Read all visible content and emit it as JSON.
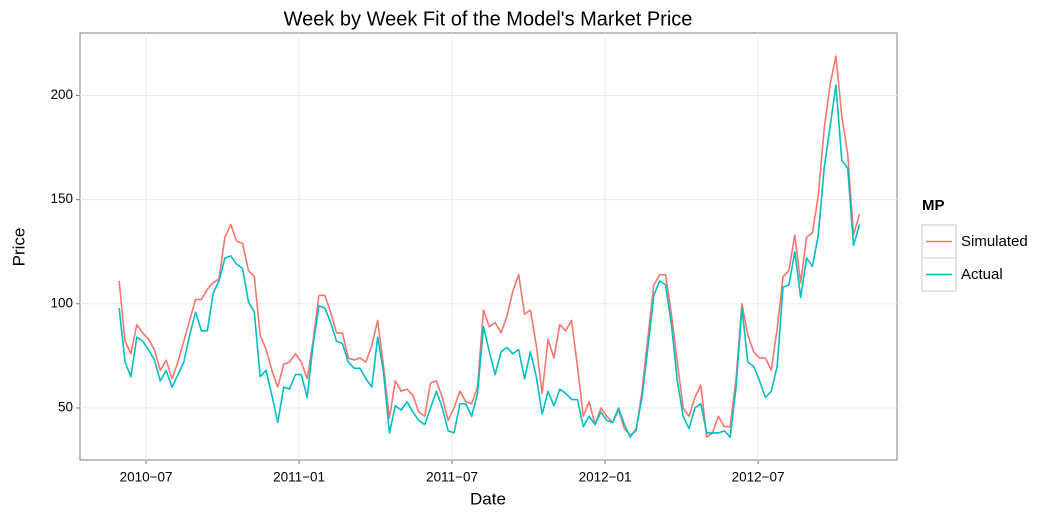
{
  "chart_data": {
    "type": "line",
    "title": "Week by Week Fit of the Model's Market Price",
    "x_label": "Date",
    "y_label": "Price",
    "legend_title": "MP",
    "legend_position": "right",
    "grid": true,
    "x": [
      2010.412,
      2010.4312,
      2010.4504,
      2010.4696,
      2010.4888,
      2010.508,
      2010.5272,
      2010.5464,
      2010.5656,
      2010.5848,
      2010.604,
      2010.6232,
      2010.6424,
      2010.6616,
      2010.6808,
      2010.7,
      2010.7192,
      2010.7384,
      2010.7576,
      2010.7768,
      2010.796,
      2010.8152,
      2010.8344,
      2010.8536,
      2010.8728,
      2010.892,
      2010.9112,
      2010.9304,
      2010.9496,
      2010.9688,
      2010.988,
      2011.0072,
      2011.0264,
      2011.0456,
      2011.0648,
      2011.084,
      2011.1032,
      2011.1224,
      2011.1416,
      2011.1608,
      2011.18,
      2011.1992,
      2011.2184,
      2011.2376,
      2011.2568,
      2011.276,
      2011.2952,
      2011.3144,
      2011.3336,
      2011.3528,
      2011.372,
      2011.3912,
      2011.4104,
      2011.4296,
      2011.4488,
      2011.468,
      2011.4872,
      2011.5064,
      2011.5256,
      2011.5448,
      2011.564,
      2011.5832,
      2011.6024,
      2011.6216,
      2011.6408,
      2011.66,
      2011.6792,
      2011.6984,
      2011.7176,
      2011.7368,
      2011.756,
      2011.7752,
      2011.7944,
      2011.8136,
      2011.8328,
      2011.852,
      2011.8712,
      2011.8904,
      2011.9096,
      2011.9288,
      2011.948,
      2011.9672,
      2011.9864,
      2012.0056,
      2012.0248,
      2012.044,
      2012.0632,
      2012.0824,
      2012.1016,
      2012.1208,
      2012.14,
      2012.1592,
      2012.1784,
      2012.1976,
      2012.2168,
      2012.236,
      2012.2552,
      2012.2744,
      2012.2936,
      2012.3128,
      2012.332,
      2012.3512,
      2012.3704,
      2012.3896,
      2012.4088,
      2012.428,
      2012.4472,
      2012.4664,
      2012.4856,
      2012.5048,
      2012.524,
      2012.5432,
      2012.5624,
      2012.5816,
      2012.6008,
      2012.62,
      2012.6392,
      2012.6584,
      2012.6776,
      2012.6968,
      2012.716,
      2012.7352,
      2012.7544,
      2012.7736,
      2012.7928,
      2012.812,
      2012.8312
    ],
    "series": [
      {
        "name": "Simulated",
        "color": "#F8766D",
        "values": [
          111,
          82,
          76,
          90,
          86,
          83,
          78,
          68,
          73,
          64,
          72,
          82,
          92,
          102,
          102,
          107,
          110,
          112,
          132,
          138,
          130,
          129,
          116,
          113,
          85,
          78,
          68,
          60,
          71,
          72,
          76,
          72,
          64,
          82,
          104,
          104,
          96,
          86,
          86,
          74,
          73,
          74,
          72,
          80,
          92,
          70,
          45,
          63,
          58,
          59,
          56,
          48,
          46,
          62,
          63,
          55,
          44,
          50,
          58,
          53,
          52,
          60,
          97,
          89,
          91,
          86,
          94,
          106,
          114,
          95,
          97,
          80,
          57,
          83,
          74,
          90,
          87,
          92,
          70,
          46,
          53,
          42,
          50,
          46,
          43,
          49,
          40,
          37,
          39,
          58,
          84,
          109,
          114,
          114,
          95,
          72,
          50,
          46,
          55,
          61,
          36,
          38,
          46,
          41,
          41,
          64,
          100,
          85,
          77,
          74,
          74,
          68,
          88,
          113,
          116,
          133,
          110,
          132,
          134,
          152,
          184,
          205,
          219,
          190,
          172,
          133,
          143
        ]
      },
      {
        "name": "Actual",
        "color": "#00BFC4",
        "values": [
          98,
          72,
          65,
          84,
          82,
          78,
          73,
          63,
          68,
          60,
          66,
          72,
          85,
          96,
          87,
          87,
          105,
          111,
          122,
          123,
          119,
          117,
          101,
          96,
          65,
          68,
          56,
          43,
          60,
          59,
          66,
          66,
          55,
          80,
          99,
          98,
          91,
          82,
          81,
          72,
          69,
          69,
          64,
          60,
          84,
          67,
          38,
          51,
          49,
          53,
          48,
          44,
          42,
          50,
          58,
          50,
          39,
          38,
          52,
          52,
          46,
          57,
          89,
          77,
          66,
          77,
          79,
          76,
          78,
          64,
          77,
          65,
          47,
          58,
          51,
          59,
          57,
          54,
          54,
          41,
          46,
          42,
          48,
          44,
          43,
          50,
          42,
          36,
          40,
          55,
          79,
          104,
          111,
          109,
          90,
          63,
          46,
          40,
          50,
          52,
          38,
          38,
          38,
          39,
          36,
          60,
          98,
          72,
          70,
          63,
          55,
          58,
          70,
          108,
          109,
          125,
          103,
          122,
          118,
          133,
          165,
          185,
          205,
          169,
          165,
          128,
          138
        ]
      }
    ],
    "xlim": [
      2010.284,
      2012.954
    ],
    "xticks": [
      {
        "value": 2010.5,
        "label": "2010−07"
      },
      {
        "value": 2011.0,
        "label": "2011−01"
      },
      {
        "value": 2011.5,
        "label": "2011−07"
      },
      {
        "value": 2012.0,
        "label": "2012−01"
      },
      {
        "value": 2012.5,
        "label": "2012−07"
      }
    ],
    "ylim": [
      25,
      230
    ],
    "yticks": [
      50,
      100,
      150,
      200
    ]
  }
}
